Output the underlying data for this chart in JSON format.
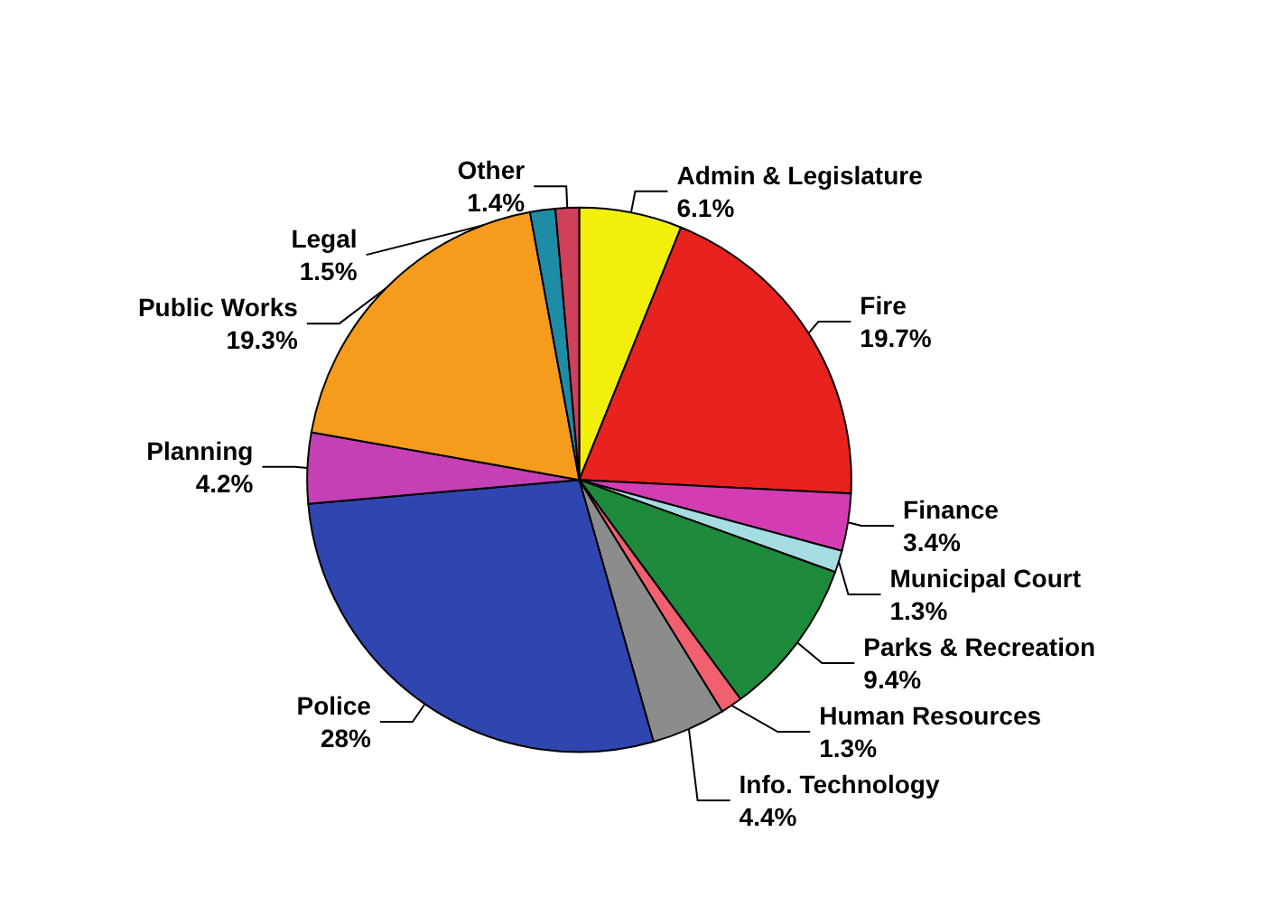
{
  "chart_data": {
    "type": "pie",
    "categories": [
      "Admin & Legislature",
      "Fire",
      "Finance",
      "Municipal Court",
      "Parks & Recreation",
      "Human Resources",
      "Info. Technology",
      "Police",
      "Planning",
      "Public Works",
      "Legal",
      "Other"
    ],
    "values": [
      6.1,
      19.7,
      3.4,
      1.3,
      9.4,
      1.3,
      4.4,
      28,
      4.2,
      19.3,
      1.5,
      1.4
    ],
    "value_labels": [
      "6.1%",
      "19.7%",
      "3.4%",
      "1.3%",
      "9.4%",
      "1.3%",
      "4.4%",
      "28%",
      "4.2%",
      "19.3%",
      "1.5%",
      "1.4%"
    ],
    "colors": [
      "#f2ef0c",
      "#e8221e",
      "#d43cb4",
      "#a6dde2",
      "#1e8a3c",
      "#f0606e",
      "#8c8c8c",
      "#2f46b0",
      "#c440b4",
      "#f59c1c",
      "#1f8ca6",
      "#d0405a"
    ]
  }
}
